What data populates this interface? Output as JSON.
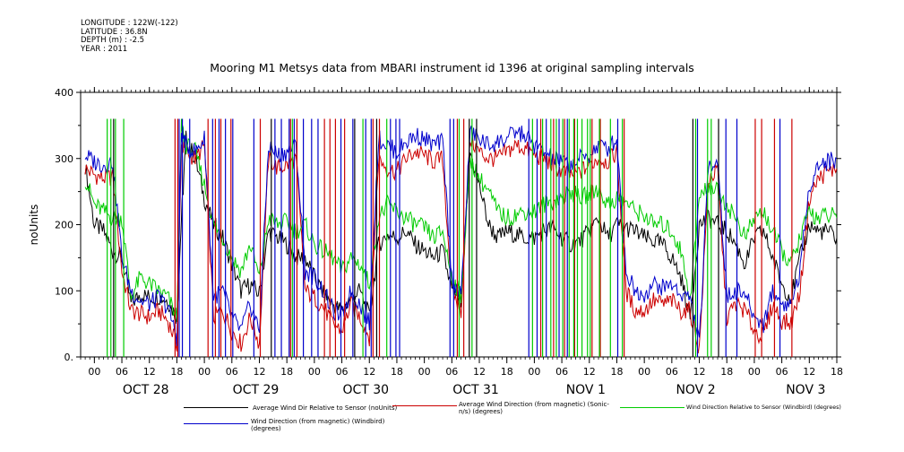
{
  "meta": {
    "lines": [
      "LONGITUDE : 122W(-122)",
      "LATITUDE : 36.8N",
      "DEPTH (m) : -2.5",
      "YEAR : 2011"
    ]
  },
  "chart_data": {
    "type": "line",
    "title": "Mooring M1 Metsys data from MBARI instrument id 1396 at original sampling intervals",
    "ylabel": "noUnits",
    "xlabel": "",
    "ylim": [
      0,
      400
    ],
    "yticks": [
      "0.",
      "100",
      "200",
      "300",
      "400"
    ],
    "xlim_hours": [
      -3,
      162
    ],
    "x_hour_ticks": [
      "00",
      "06",
      "12",
      "18",
      "00",
      "06",
      "12",
      "18",
      "00",
      "06",
      "12",
      "18",
      "00",
      "06",
      "12",
      "18",
      "00",
      "06",
      "12",
      "18",
      "00",
      "06",
      "12",
      "18",
      "00",
      "06",
      "12",
      "18"
    ],
    "x_day_labels": [
      "OCT 28",
      "OCT 29",
      "OCT 30",
      "OCT 31",
      "NOV  1",
      "NOV  2",
      "NOV  3"
    ],
    "grid": false,
    "legend_position": "bottom",
    "series": [
      {
        "name": "Average Wind Dir Relative to Sensor (noUnits)",
        "color": "#000000",
        "x": [
          -2,
          0,
          2,
          4,
          6,
          8,
          10,
          12,
          14,
          16,
          18,
          19,
          20,
          22,
          24,
          26,
          28,
          30,
          32,
          34,
          36,
          38,
          40,
          42,
          44,
          46,
          48,
          50,
          52,
          54,
          56,
          58,
          60,
          62,
          64,
          66,
          68,
          70,
          72,
          74,
          76,
          78,
          80,
          82,
          84,
          86,
          88,
          90,
          92,
          94,
          96,
          98,
          100,
          102,
          104,
          106,
          108,
          110,
          112,
          114,
          116,
          118,
          120,
          122,
          124,
          126,
          128,
          130,
          132,
          134,
          136,
          138,
          140,
          142,
          144,
          146,
          148,
          150,
          152,
          154,
          156,
          158,
          160,
          162
        ],
        "values": [
          290,
          200,
          190,
          160,
          150,
          80,
          95,
          90,
          92,
          85,
          60,
          210,
          330,
          300,
          240,
          200,
          180,
          140,
          100,
          110,
          95,
          190,
          180,
          170,
          150,
          150,
          120,
          95,
          80,
          70,
          90,
          100,
          60,
          170,
          185,
          180,
          190,
          170,
          160,
          150,
          160,
          100,
          80,
          310,
          260,
          200,
          180,
          190,
          185,
          180,
          180,
          190,
          195,
          180,
          170,
          175,
          190,
          210,
          180,
          200,
          195,
          190,
          180,
          175,
          170,
          150,
          120,
          60,
          200,
          210,
          200,
          190,
          170,
          140,
          180,
          190,
          150,
          110,
          90,
          150,
          200,
          190,
          190,
          180
        ]
      },
      {
        "name": "Average Wind Direction (from magnetic) (Sonic-n/s) (degrees)",
        "color": "#cc0000",
        "x": [
          -2,
          0,
          2,
          4,
          6,
          8,
          10,
          12,
          14,
          16,
          18,
          19,
          20,
          22,
          24,
          26,
          28,
          30,
          32,
          34,
          36,
          38,
          40,
          42,
          44,
          46,
          48,
          50,
          52,
          54,
          56,
          58,
          60,
          62,
          64,
          66,
          68,
          70,
          72,
          74,
          76,
          78,
          80,
          82,
          84,
          86,
          88,
          90,
          92,
          94,
          96,
          98,
          100,
          102,
          104,
          106,
          108,
          110,
          112,
          114,
          116,
          118,
          120,
          122,
          124,
          126,
          128,
          130,
          132,
          134,
          136,
          138,
          140,
          142,
          144,
          146,
          148,
          150,
          152,
          154,
          156,
          158,
          160,
          162
        ],
        "values": [
          285,
          275,
          270,
          272,
          130,
          70,
          65,
          60,
          70,
          55,
          20,
          320,
          310,
          300,
          320,
          60,
          70,
          40,
          20,
          60,
          20,
          300,
          285,
          290,
          300,
          100,
          90,
          75,
          50,
          40,
          80,
          60,
          30,
          300,
          285,
          280,
          300,
          310,
          305,
          295,
          300,
          100,
          70,
          330,
          310,
          300,
          300,
          310,
          320,
          315,
          305,
          300,
          290,
          280,
          275,
          280,
          290,
          300,
          295,
          310,
          100,
          70,
          70,
          85,
          80,
          85,
          70,
          70,
          10,
          270,
          280,
          60,
          80,
          70,
          40,
          30,
          80,
          55,
          50,
          100,
          240,
          270,
          280,
          285
        ]
      },
      {
        "name": "Wind Direction Relative to Sensor (Windbird) (degrees)",
        "color": "#00cc00",
        "x": [
          -2,
          0,
          2,
          4,
          6,
          8,
          10,
          12,
          14,
          16,
          18,
          19,
          20,
          22,
          24,
          26,
          28,
          30,
          32,
          34,
          36,
          38,
          40,
          42,
          44,
          46,
          48,
          50,
          52,
          54,
          56,
          58,
          60,
          62,
          64,
          66,
          68,
          70,
          72,
          74,
          76,
          78,
          80,
          82,
          84,
          86,
          88,
          90,
          92,
          94,
          96,
          98,
          100,
          102,
          104,
          106,
          108,
          110,
          112,
          114,
          116,
          118,
          120,
          122,
          124,
          126,
          128,
          130,
          132,
          134,
          136,
          138,
          140,
          142,
          144,
          146,
          148,
          150,
          152,
          154,
          156,
          158,
          160,
          162
        ],
        "values": [
          270,
          230,
          220,
          210,
          210,
          90,
          120,
          110,
          100,
          90,
          60,
          350,
          320,
          310,
          260,
          200,
          180,
          150,
          130,
          170,
          120,
          210,
          200,
          205,
          190,
          200,
          170,
          160,
          150,
          130,
          150,
          140,
          110,
          210,
          230,
          220,
          210,
          200,
          195,
          180,
          190,
          120,
          90,
          300,
          270,
          250,
          220,
          210,
          215,
          220,
          220,
          230,
          235,
          240,
          250,
          240,
          245,
          255,
          230,
          240,
          235,
          220,
          215,
          200,
          200,
          190,
          160,
          90,
          240,
          260,
          250,
          230,
          210,
          180,
          210,
          220,
          190,
          160,
          140,
          180,
          220,
          210,
          215,
          210
        ]
      },
      {
        "name": "Wind Direction (from magnetic) (Windbird) (degrees)",
        "color": "#0000cc",
        "x": [
          -2,
          0,
          2,
          4,
          6,
          8,
          10,
          12,
          14,
          16,
          18,
          19,
          20,
          22,
          24,
          26,
          28,
          30,
          32,
          34,
          36,
          38,
          40,
          42,
          44,
          46,
          48,
          50,
          52,
          54,
          56,
          58,
          60,
          62,
          64,
          66,
          68,
          70,
          72,
          74,
          76,
          78,
          80,
          82,
          84,
          86,
          88,
          90,
          92,
          94,
          96,
          98,
          100,
          102,
          104,
          106,
          108,
          110,
          112,
          114,
          116,
          118,
          120,
          122,
          124,
          126,
          128,
          130,
          132,
          134,
          136,
          138,
          140,
          142,
          144,
          146,
          148,
          150,
          152,
          154,
          156,
          158,
          160,
          162
        ],
        "values": [
          305,
          295,
          290,
          295,
          150,
          100,
          85,
          80,
          90,
          75,
          30,
          340,
          320,
          310,
          330,
          90,
          100,
          60,
          40,
          80,
          40,
          320,
          305,
          310,
          320,
          130,
          120,
          100,
          70,
          60,
          100,
          80,
          50,
          330,
          320,
          310,
          325,
          335,
          330,
          320,
          325,
          120,
          90,
          340,
          330,
          320,
          325,
          330,
          340,
          335,
          320,
          310,
          300,
          295,
          290,
          300,
          305,
          320,
          315,
          330,
          130,
          100,
          95,
          110,
          105,
          110,
          95,
          90,
          20,
          290,
          300,
          90,
          100,
          95,
          60,
          50,
          100,
          80,
          80,
          130,
          260,
          290,
          295,
          300
        ]
      }
    ],
    "spikes": [
      {
        "color": "#0000cc",
        "x": [
          18.5,
          19.2,
          20.8,
          25.8,
          27.2,
          28.6,
          30.2,
          34.8,
          39.4,
          40.8,
          42.5,
          43.6,
          45.6,
          47.4,
          48.8,
          53.8,
          56.4,
          59.2,
          60.4,
          64.6,
          65.8,
          66.6,
          77.6,
          78.4,
          94.8,
          96.6,
          98.6,
          101.4,
          103.2,
          114.2,
          131.6,
          137.8,
          140.2,
          149.6
        ]
      },
      {
        "color": "#cc0000",
        "x": [
          17.6,
          18.2,
          24.8,
          26.4,
          27.6,
          29.8,
          36.2,
          42.8,
          44.2,
          50.2,
          51.4,
          52.6,
          54.6,
          60.8,
          62.2,
          79.2,
          80.6,
          97.4,
          100.2,
          102.6,
          104.8,
          108.6,
          110.4,
          115.6,
          144.2,
          145.6,
          148.4,
          152.2
        ]
      },
      {
        "color": "#00cc00",
        "x": [
          2.8,
          3.6,
          4.6,
          6.4,
          43.2,
          58.6,
          63.8,
          79.6,
          82.4,
          95.6,
          97.8,
          99.6,
          100.8,
          102.2,
          103.6,
          104.6,
          105.4,
          106.4,
          107.6,
          108.2,
          110.2,
          112.6,
          115.2,
          131.2,
          133.8,
          134.6
        ]
      },
      {
        "color": "#000000",
        "x": [
          4.2,
          38.6,
          56.8,
          61.6,
          81.8,
          83.4,
          130.6,
          136.2
        ]
      }
    ]
  }
}
